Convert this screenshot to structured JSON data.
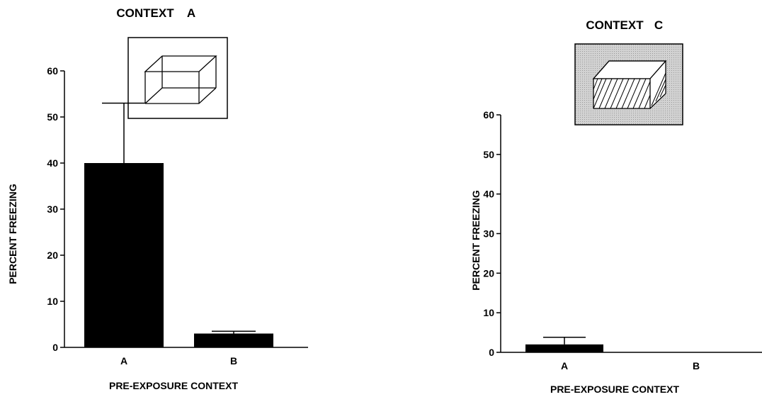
{
  "chart_data": [
    {
      "type": "bar",
      "title_word": "CONTEXT",
      "title_letter": "A",
      "context_icon": "wireframe-box-plain",
      "categories": [
        "A",
        "B"
      ],
      "values": [
        40,
        3
      ],
      "error_upper": [
        53,
        3.5
      ],
      "ylim": [
        0,
        60
      ],
      "yticks": [
        "0",
        "10",
        "20",
        "30",
        "40",
        "50",
        "60"
      ],
      "ylabel": "PERCENT FREEZING",
      "xlabel": "PRE-EXPOSURE CONTEXT",
      "bar_color": "#000000",
      "grid": false
    },
    {
      "type": "bar",
      "title_word": "CONTEXT",
      "title_letter": "C",
      "context_icon": "wireframe-box-hatched-floor-gray-background",
      "categories": [
        "A",
        "B"
      ],
      "values": [
        2,
        0
      ],
      "error_upper": [
        3.8,
        0
      ],
      "ylim": [
        0,
        60
      ],
      "yticks": [
        "0",
        "10",
        "20",
        "30",
        "40",
        "50",
        "60"
      ],
      "ylabel": "PERCENT FREEZING",
      "xlabel": "PRE-EXPOSURE CONTEXT",
      "bar_color": "#000000",
      "icon_background": "#c8c8c8",
      "grid": false
    }
  ]
}
